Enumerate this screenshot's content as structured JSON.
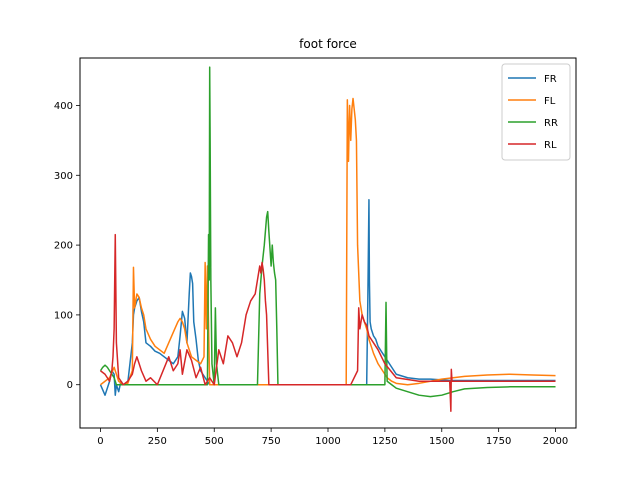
{
  "chart_data": {
    "type": "line",
    "title": "foot force",
    "xlabel": "",
    "ylabel": "",
    "xlim": [
      -90,
      2090
    ],
    "ylim": [
      -62,
      468
    ],
    "xticks": [
      0,
      250,
      500,
      750,
      1000,
      1250,
      1500,
      1750,
      2000
    ],
    "yticks": [
      0,
      100,
      200,
      300,
      400
    ],
    "grid": false,
    "legend_position": "top-right",
    "series": [
      {
        "name": "FR",
        "color": "#1f77b4",
        "x": [
          0,
          20,
          40,
          50,
          60,
          65,
          70,
          80,
          90,
          100,
          120,
          140,
          145,
          150,
          160,
          170,
          180,
          190,
          200,
          220,
          240,
          260,
          280,
          300,
          320,
          340,
          350,
          360,
          370,
          380,
          390,
          395,
          400,
          405,
          410,
          420,
          430,
          440,
          450,
          460,
          470,
          480,
          490,
          500,
          550,
          600,
          700,
          800,
          900,
          1000,
          1100,
          1170,
          1175,
          1180,
          1182,
          1185,
          1190,
          1200,
          1210,
          1220,
          1240,
          1260,
          1280,
          1300,
          1350,
          1400,
          1450,
          1500,
          1540,
          1600,
          1700,
          1800,
          1900,
          2000
        ],
        "y": [
          0,
          -15,
          5,
          20,
          15,
          -15,
          0,
          -10,
          5,
          0,
          3,
          60,
          100,
          110,
          120,
          125,
          105,
          90,
          60,
          55,
          48,
          45,
          40,
          35,
          30,
          40,
          70,
          105,
          95,
          60,
          130,
          160,
          155,
          145,
          90,
          65,
          35,
          20,
          15,
          10,
          5,
          0,
          0,
          0,
          0,
          0,
          0,
          0,
          0,
          0,
          0,
          0,
          120,
          265,
          150,
          90,
          80,
          70,
          65,
          55,
          45,
          35,
          25,
          15,
          10,
          8,
          8,
          7,
          6,
          6,
          6,
          6,
          6,
          6
        ]
      },
      {
        "name": "FL",
        "color": "#ff7f0e",
        "x": [
          0,
          20,
          40,
          60,
          80,
          100,
          120,
          140,
          145,
          150,
          160,
          170,
          180,
          190,
          200,
          220,
          240,
          260,
          280,
          300,
          320,
          340,
          350,
          360,
          370,
          380,
          400,
          420,
          440,
          455,
          460,
          465,
          470,
          480,
          500,
          600,
          700,
          800,
          900,
          1000,
          1080,
          1085,
          1090,
          1095,
          1100,
          1105,
          1110,
          1115,
          1120,
          1125,
          1130,
          1140,
          1150,
          1160,
          1170,
          1180,
          1190,
          1200,
          1220,
          1240,
          1260,
          1280,
          1300,
          1350,
          1400,
          1450,
          1500,
          1600,
          1700,
          1800,
          1900,
          2000
        ],
        "y": [
          0,
          5,
          10,
          25,
          5,
          0,
          2,
          20,
          168,
          110,
          130,
          125,
          110,
          100,
          80,
          65,
          55,
          50,
          45,
          60,
          75,
          90,
          95,
          90,
          80,
          60,
          40,
          35,
          30,
          40,
          175,
          80,
          170,
          0,
          0,
          0,
          0,
          0,
          0,
          0,
          0,
          408,
          320,
          400,
          350,
          395,
          410,
          395,
          380,
          350,
          200,
          120,
          100,
          90,
          80,
          65,
          55,
          45,
          30,
          20,
          10,
          5,
          2,
          0,
          2,
          5,
          8,
          12,
          14,
          15,
          14,
          13
        ]
      },
      {
        "name": "RR",
        "color": "#2ca02c",
        "x": [
          0,
          10,
          20,
          30,
          40,
          50,
          60,
          70,
          80,
          100,
          150,
          200,
          250,
          300,
          350,
          400,
          450,
          470,
          475,
          478,
          480,
          482,
          485,
          490,
          500,
          505,
          510,
          520,
          550,
          600,
          650,
          690,
          700,
          710,
          720,
          730,
          735,
          740,
          745,
          750,
          755,
          760,
          765,
          770,
          775,
          780,
          790,
          800,
          900,
          1000,
          1100,
          1200,
          1250,
          1255,
          1258,
          1260,
          1280,
          1300,
          1350,
          1400,
          1450,
          1500,
          1550,
          1600,
          1700,
          1800,
          1900,
          2000
        ],
        "y": [
          20,
          25,
          28,
          25,
          20,
          15,
          10,
          0,
          0,
          0,
          0,
          0,
          0,
          0,
          0,
          0,
          0,
          0,
          215,
          150,
          455,
          350,
          150,
          30,
          0,
          110,
          30,
          0,
          0,
          0,
          0,
          0,
          130,
          170,
          200,
          240,
          248,
          220,
          195,
          170,
          200,
          175,
          160,
          150,
          80,
          0,
          0,
          0,
          0,
          0,
          0,
          0,
          0,
          118,
          40,
          5,
          0,
          -5,
          -10,
          -15,
          -17,
          -15,
          -10,
          -6,
          -4,
          -3,
          -3,
          -3
        ]
      },
      {
        "name": "RL",
        "color": "#d62728",
        "x": [
          0,
          20,
          40,
          50,
          55,
          60,
          65,
          70,
          80,
          100,
          120,
          140,
          150,
          160,
          180,
          200,
          220,
          250,
          300,
          320,
          340,
          350,
          360,
          380,
          400,
          420,
          440,
          460,
          480,
          500,
          520,
          540,
          560,
          580,
          600,
          620,
          640,
          660,
          680,
          700,
          705,
          710,
          715,
          720,
          725,
          730,
          740,
          800,
          900,
          1000,
          1100,
          1130,
          1135,
          1140,
          1150,
          1160,
          1170,
          1180,
          1200,
          1220,
          1250,
          1300,
          1400,
          1500,
          1535,
          1540,
          1542,
          1545,
          1550,
          1600,
          1700,
          1800,
          1900,
          2000
        ],
        "y": [
          20,
          15,
          5,
          20,
          40,
          80,
          215,
          60,
          10,
          0,
          5,
          15,
          30,
          40,
          20,
          5,
          10,
          0,
          40,
          20,
          30,
          50,
          15,
          50,
          35,
          10,
          25,
          0,
          10,
          0,
          50,
          30,
          70,
          60,
          40,
          60,
          100,
          120,
          130,
          170,
          160,
          175,
          165,
          150,
          120,
          100,
          0,
          0,
          0,
          0,
          0,
          20,
          110,
          80,
          100,
          90,
          85,
          70,
          60,
          50,
          30,
          10,
          5,
          5,
          5,
          -38,
          22,
          5,
          5,
          5,
          5,
          5,
          5,
          5
        ]
      }
    ]
  }
}
